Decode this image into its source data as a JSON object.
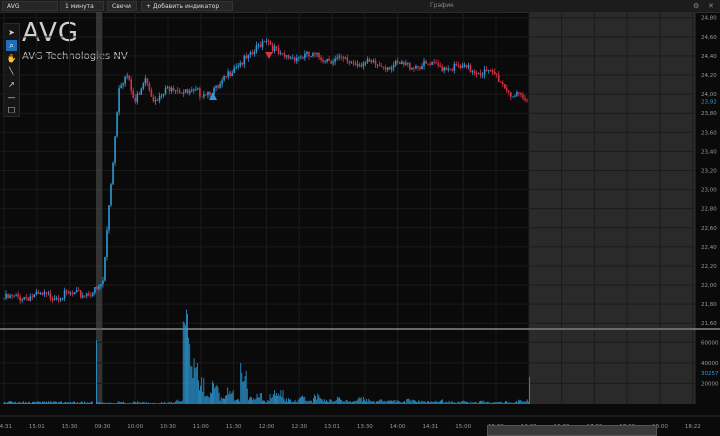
{
  "topbar": {
    "symbol_tab": "AVG",
    "interval": "1 минута",
    "chart_type": "Свечи",
    "add_indicator": "+ Добавить индикатор",
    "window_title": "График"
  },
  "toolbar": {
    "tools": [
      "cursor-icon",
      "zoom-icon",
      "hand-icon",
      "line-icon",
      "arrow-icon",
      "horizontal-line-icon",
      "rectangle-icon"
    ],
    "active_tool": "zoom-icon"
  },
  "header": {
    "symbol": "AVG",
    "company": "AVG Technologies NV"
  },
  "colors": {
    "up": "#2e9bd9",
    "down": "#d83244",
    "volume": "#2e9bd9",
    "current_price": "#2e9bd9"
  },
  "chart_data": {
    "type": "candlestick",
    "price_axis_ticks": [
      "24,80",
      "24,60",
      "24,40",
      "24,20",
      "24,00",
      "23,80",
      "23,60",
      "23,40",
      "23,20",
      "23,00",
      "22,80",
      "22,60",
      "22,40",
      "22,20",
      "22,00",
      "21,80",
      "21,60"
    ],
    "current_price": "23,92",
    "volume_axis_ticks": [
      "60000",
      "40000",
      "20000"
    ],
    "current_volume": "30257",
    "time_axis_ticks": [
      "14:31",
      "15:01",
      "15:30",
      "09:30",
      "10:00",
      "10:30",
      "11:00",
      "11:30",
      "12:00",
      "12:30",
      "13:01",
      "13:30",
      "14:00",
      "14:31",
      "15:00",
      "15:30",
      "16:02",
      "16:30",
      "17:00",
      "17:30",
      "18:00",
      "18:22"
    ],
    "ylim": [
      21.55,
      24.86
    ],
    "price_path": [
      [
        0,
        21.86
      ],
      [
        0.05,
        21.88
      ],
      [
        0.1,
        21.89
      ],
      [
        0.15,
        21.9
      ],
      [
        0.18,
        21.95
      ],
      [
        0.19,
        22.05
      ],
      [
        0.2,
        22.8
      ],
      [
        0.21,
        23.4
      ],
      [
        0.22,
        24.1
      ],
      [
        0.235,
        24.2
      ],
      [
        0.25,
        23.9
      ],
      [
        0.27,
        24.2
      ],
      [
        0.29,
        23.9
      ],
      [
        0.32,
        24.1
      ],
      [
        0.35,
        24.0
      ],
      [
        0.38,
        24.02
      ],
      [
        0.41,
        24.05
      ],
      [
        0.44,
        24.3
      ],
      [
        0.47,
        24.38
      ],
      [
        0.5,
        24.6
      ],
      [
        0.53,
        24.38
      ],
      [
        0.58,
        24.4
      ],
      [
        0.65,
        24.35
      ],
      [
        0.72,
        24.3
      ],
      [
        0.8,
        24.3
      ],
      [
        0.86,
        24.28
      ],
      [
        0.9,
        24.25
      ],
      [
        0.94,
        24.2
      ],
      [
        0.97,
        24.0
      ],
      [
        1,
        23.92
      ]
    ],
    "volume_bars": [
      1500,
      1200,
      900,
      1800,
      1100,
      2000,
      1400,
      1000,
      800,
      1500,
      1700,
      3000,
      62000,
      30000,
      21000,
      9000,
      15000,
      6000,
      11000,
      4000,
      28000,
      5000,
      8000,
      3000,
      9000,
      12000,
      4000,
      3000,
      6000,
      2500,
      7000,
      4000,
      3500,
      5000,
      3000,
      2500,
      5000,
      3500,
      2000,
      4000,
      3000,
      2600,
      2000,
      3500,
      3000,
      2500,
      2000,
      3000,
      2200,
      1800,
      2500,
      2000,
      1500,
      2200,
      1800,
      1500,
      2000,
      1600,
      2800,
      3200,
      30257
    ]
  }
}
